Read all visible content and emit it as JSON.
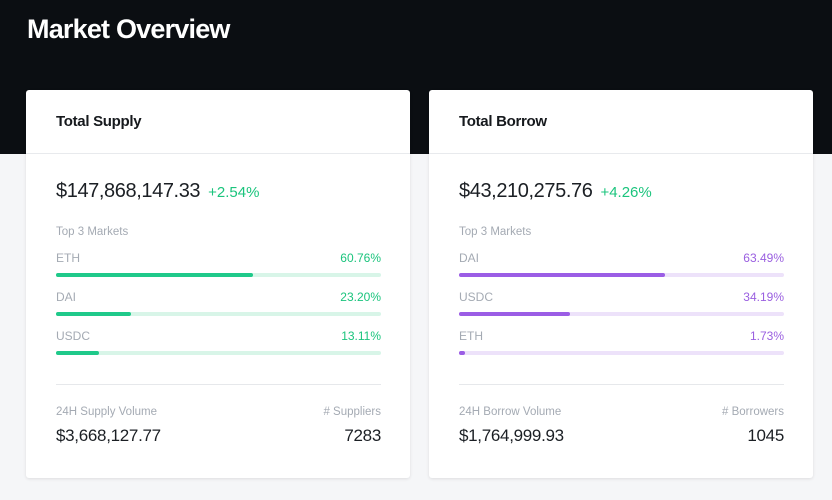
{
  "page": {
    "title": "Market Overview"
  },
  "supply": {
    "title": "Total Supply",
    "total": "$147,868,147.33",
    "change": "+2.54%",
    "top_label": "Top 3 Markets",
    "markets": [
      {
        "name": "ETH",
        "pct": "60.76%",
        "share": 60.76
      },
      {
        "name": "DAI",
        "pct": "23.20%",
        "share": 23.2
      },
      {
        "name": "USDC",
        "pct": "13.11%",
        "share": 13.11
      }
    ],
    "volume_label": "24H Supply Volume",
    "volume": "$3,668,127.77",
    "count_label": "# Suppliers",
    "count": "7283",
    "accent": "#1bc47d"
  },
  "borrow": {
    "title": "Total Borrow",
    "total": "$43,210,275.76",
    "change": "+4.26%",
    "top_label": "Top 3 Markets",
    "markets": [
      {
        "name": "DAI",
        "pct": "63.49%",
        "share": 63.49
      },
      {
        "name": "USDC",
        "pct": "34.19%",
        "share": 34.19
      },
      {
        "name": "ETH",
        "pct": "1.73%",
        "share": 1.73
      }
    ],
    "volume_label": "24H Borrow Volume",
    "volume": "$1,764,999.93",
    "count_label": "# Borrowers",
    "count": "1045",
    "accent": "#9b5de5"
  }
}
